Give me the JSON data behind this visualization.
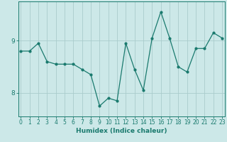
{
  "x": [
    0,
    1,
    2,
    3,
    4,
    5,
    6,
    7,
    8,
    9,
    10,
    11,
    12,
    13,
    14,
    15,
    16,
    17,
    18,
    19,
    20,
    21,
    22,
    23
  ],
  "y": [
    8.8,
    8.8,
    8.95,
    8.6,
    8.55,
    8.55,
    8.55,
    8.45,
    8.35,
    7.75,
    7.9,
    7.85,
    8.95,
    8.45,
    8.05,
    9.05,
    9.55,
    9.05,
    8.5,
    8.4,
    8.85,
    8.85,
    9.15,
    9.05
  ],
  "line_color": "#1a7a6e",
  "marker": "o",
  "marker_size": 2,
  "bg_color": "#cce8e8",
  "grid_color": "#aacccc",
  "axis_color": "#1a7a6e",
  "xlabel": "Humidex (Indice chaleur)",
  "ylim_min": 7.55,
  "ylim_max": 9.75,
  "yticks": [
    8,
    9
  ],
  "xticks": [
    0,
    1,
    2,
    3,
    4,
    5,
    6,
    7,
    8,
    9,
    10,
    11,
    12,
    13,
    14,
    15,
    16,
    17,
    18,
    19,
    20,
    21,
    22,
    23
  ],
  "xlabel_fontsize": 6.5,
  "tick_fontsize": 5.5,
  "ytick_fontsize": 6.5
}
